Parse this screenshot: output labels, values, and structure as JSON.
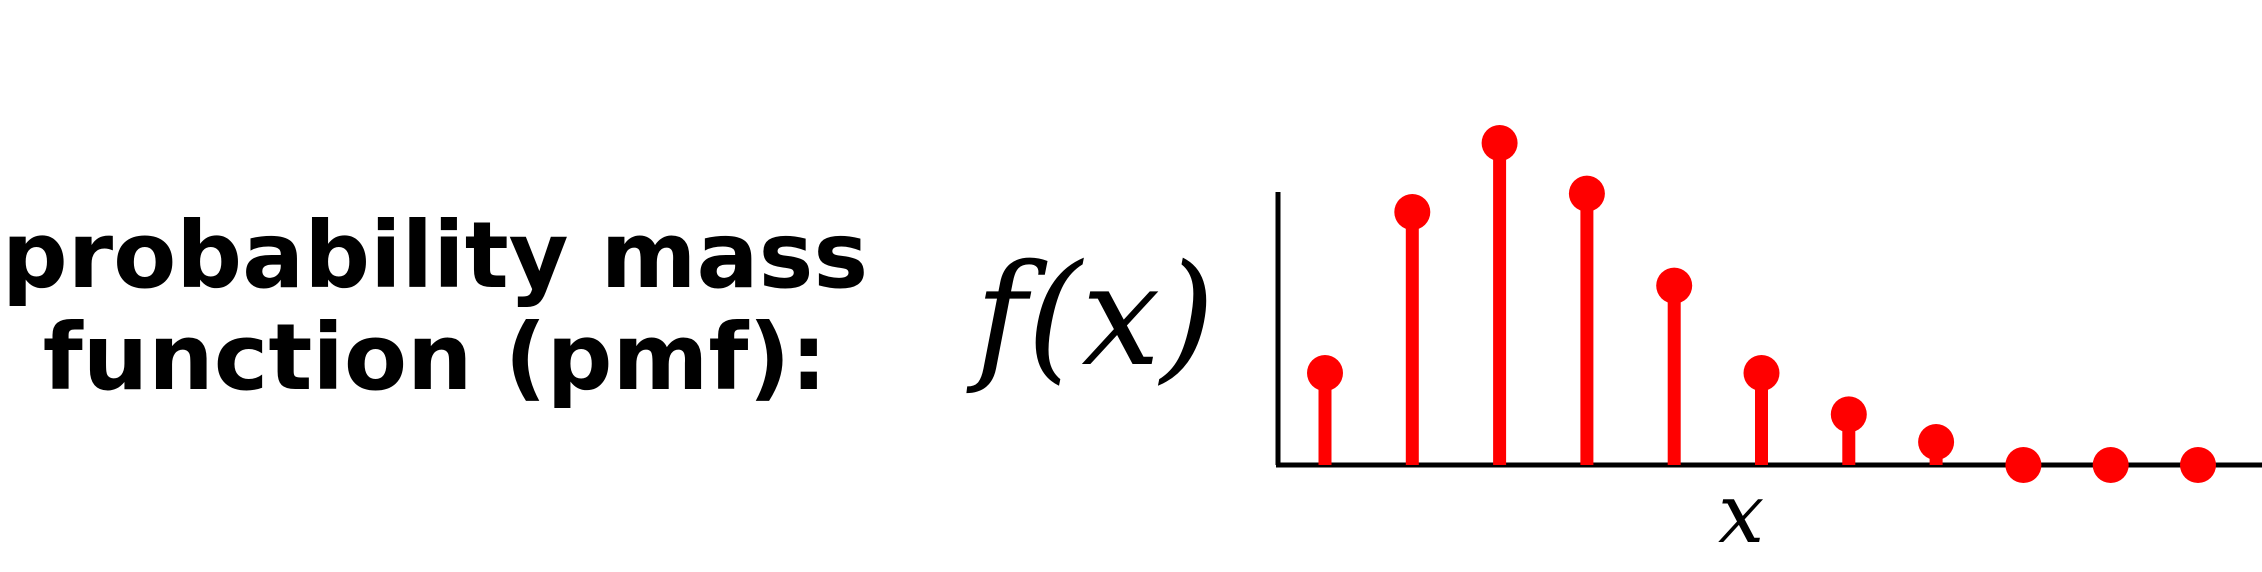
{
  "title": {
    "line1": "probability mass",
    "line2": "function (pmf):"
  },
  "chart_data": {
    "type": "stem",
    "ylabel": "f(x)",
    "xlabel": "x",
    "x": [
      1,
      2,
      3,
      4,
      5,
      6,
      7,
      8,
      9,
      10,
      11
    ],
    "values": [
      0.2,
      0.55,
      0.7,
      0.59,
      0.39,
      0.2,
      0.11,
      0.05,
      0.0,
      0.0,
      0.0
    ],
    "ylim": [
      0,
      0.75
    ],
    "color": "#ff0000",
    "axis_color": "#000000",
    "grid": false
  }
}
